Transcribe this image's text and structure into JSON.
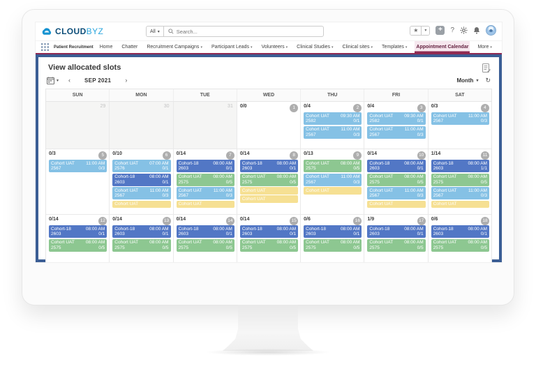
{
  "brand": {
    "cloud": "CLOUD",
    "byz": "BYZ"
  },
  "header": {
    "scope_label": "All",
    "search_placeholder": "Search...",
    "plus_label": "+",
    "help_label": "?"
  },
  "glyphs": {
    "caret_down": "▾",
    "chevron_left": "‹",
    "chevron_right": "›",
    "star": "★",
    "refresh": "↻"
  },
  "nav": {
    "app_label": "Patient Recruitment",
    "tabs": [
      {
        "label": "Home",
        "caret": false,
        "active": false
      },
      {
        "label": "Chatter",
        "caret": false,
        "active": false
      },
      {
        "label": "Recruitment Campaigns",
        "caret": true,
        "active": false
      },
      {
        "label": "Participant Leads",
        "caret": true,
        "active": false
      },
      {
        "label": "Volunteers",
        "caret": true,
        "active": false
      },
      {
        "label": "Clinical Studies",
        "caret": true,
        "active": false
      },
      {
        "label": "Clinical sites",
        "caret": true,
        "active": false
      },
      {
        "label": "Templates",
        "caret": true,
        "active": false
      },
      {
        "label": "Appointment Calendar",
        "caret": false,
        "active": true
      },
      {
        "label": "More",
        "caret": true,
        "active": false
      }
    ]
  },
  "page": {
    "title": "View allocated slots"
  },
  "toolbar": {
    "month_label": "SEP 2021",
    "view_label": "Month"
  },
  "colors": {
    "event_blue": "#85c1e5",
    "event_dark_blue": "#5277c5",
    "event_green": "#8dc791",
    "event_yellow": "#f6e093",
    "accent_maroon": "#8e2a52",
    "frame_blue": "#3b5e95",
    "brand_blue": "#1793d1"
  },
  "calendar": {
    "day_headers": [
      "SUN",
      "MON",
      "TUE",
      "WED",
      "THU",
      "FRI",
      "SAT"
    ],
    "weeks": [
      [
        {
          "day": "29",
          "muted": true,
          "count": "",
          "events": []
        },
        {
          "day": "30",
          "muted": true,
          "count": "",
          "events": []
        },
        {
          "day": "31",
          "muted": true,
          "count": "",
          "events": []
        },
        {
          "day": "1",
          "muted": false,
          "count": "0/0",
          "events": []
        },
        {
          "day": "2",
          "muted": false,
          "count": "0/4",
          "events": [
            {
              "name": "Cohort UAT",
              "id": "2582",
              "time": "09:30 AM",
              "slots": "0/1",
              "color": "blue"
            },
            {
              "name": "Cohort UAT",
              "id": "2567",
              "time": "11:00 AM",
              "slots": "0/3",
              "color": "blue"
            }
          ]
        },
        {
          "day": "3",
          "muted": false,
          "count": "0/4",
          "events": [
            {
              "name": "Cohort UAT",
              "id": "2582",
              "time": "09:30 AM",
              "slots": "0/1",
              "color": "blue"
            },
            {
              "name": "Cohort UAT",
              "id": "2567",
              "time": "11:00 AM",
              "slots": "0/3",
              "color": "blue"
            }
          ]
        },
        {
          "day": "4",
          "muted": false,
          "count": "0/3",
          "events": [
            {
              "name": "Cohort UAT",
              "id": "2567",
              "time": "11:00 AM",
              "slots": "0/3",
              "color": "blue"
            }
          ]
        }
      ],
      [
        {
          "day": "5",
          "muted": false,
          "count": "0/3",
          "events": [
            {
              "name": "Cohort UAT",
              "id": "2567",
              "time": "11:00 AM",
              "slots": "0/3",
              "color": "blue"
            }
          ]
        },
        {
          "day": "6",
          "muted": false,
          "count": "0/10",
          "events": [
            {
              "name": "Cohort UAT",
              "id": "2576",
              "time": "07:00 AM",
              "slots": "0/1",
              "color": "blue"
            },
            {
              "name": "Cohort-18",
              "id": "2603",
              "time": "08:00 AM",
              "slots": "0/1",
              "color": "darkblue"
            },
            {
              "name": "Cohort UAT",
              "id": "2567",
              "time": "11:00 AM",
              "slots": "0/3",
              "color": "blue"
            },
            {
              "name": "Cohort UAT",
              "id": "",
              "time": "",
              "slots": "",
              "color": "yellow"
            }
          ]
        },
        {
          "day": "7",
          "muted": false,
          "count": "0/14",
          "events": [
            {
              "name": "Cohort-18",
              "id": "2603",
              "time": "08:00 AM",
              "slots": "0/1",
              "color": "darkblue"
            },
            {
              "name": "Cohort UAT",
              "id": "2575",
              "time": "08:00 AM",
              "slots": "0/5",
              "color": "green"
            },
            {
              "name": "Cohort UAT",
              "id": "2567",
              "time": "11:00 AM",
              "slots": "0/3",
              "color": "blue"
            },
            {
              "name": "Cohort UAT",
              "id": "",
              "time": "",
              "slots": "",
              "color": "yellow"
            }
          ]
        },
        {
          "day": "8",
          "muted": false,
          "count": "0/14",
          "events": [
            {
              "name": "Cohort-18",
              "id": "2603",
              "time": "08:00 AM",
              "slots": "0/1",
              "color": "darkblue"
            },
            {
              "name": "Cohort UAT",
              "id": "2575",
              "time": "08:00 AM",
              "slots": "0/5",
              "color": "green"
            },
            {
              "name": "Cohort UAT",
              "id": "",
              "time": "",
              "slots": "",
              "color": "yellow"
            },
            {
              "name": "Cohort UAT",
              "id": "",
              "time": "",
              "slots": "",
              "color": "yellow"
            }
          ]
        },
        {
          "day": "9",
          "muted": false,
          "count": "0/13",
          "events": [
            {
              "name": "Cohort UAT",
              "id": "2575",
              "time": "08:00 AM",
              "slots": "0/5",
              "color": "green"
            },
            {
              "name": "Cohort UAT",
              "id": "2567",
              "time": "11:00 AM",
              "slots": "0/3",
              "color": "blue"
            },
            {
              "name": "Cohort UAT",
              "id": "",
              "time": "",
              "slots": "",
              "color": "yellow"
            }
          ]
        },
        {
          "day": "10",
          "muted": false,
          "count": "0/14",
          "events": [
            {
              "name": "Cohort-18",
              "id": "2603",
              "time": "08:00 AM",
              "slots": "0/1",
              "color": "darkblue"
            },
            {
              "name": "Cohort UAT",
              "id": "2575",
              "time": "08:00 AM",
              "slots": "0/5",
              "color": "green"
            },
            {
              "name": "Cohort UAT",
              "id": "2567",
              "time": "11:00 AM",
              "slots": "0/3",
              "color": "blue"
            },
            {
              "name": "Cohort UAT",
              "id": "",
              "time": "",
              "slots": "",
              "color": "yellow"
            }
          ]
        },
        {
          "day": "11",
          "muted": false,
          "count": "1/14",
          "events": [
            {
              "name": "Cohort-18",
              "id": "2603",
              "time": "08:00 AM",
              "slots": "1/1",
              "color": "darkblue"
            },
            {
              "name": "Cohort UAT",
              "id": "2575",
              "time": "08:00 AM",
              "slots": "0/5",
              "color": "green"
            },
            {
              "name": "Cohort UAT",
              "id": "2567",
              "time": "11:00 AM",
              "slots": "0/3",
              "color": "blue"
            },
            {
              "name": "Cohort UAT",
              "id": "",
              "time": "",
              "slots": "",
              "color": "yellow"
            }
          ]
        }
      ],
      [
        {
          "day": "12",
          "muted": false,
          "count": "0/14",
          "events": [
            {
              "name": "Cohort-18",
              "id": "2603",
              "time": "08:00 AM",
              "slots": "0/1",
              "color": "darkblue"
            },
            {
              "name": "Cohort UAT",
              "id": "2575",
              "time": "08:00 AM",
              "slots": "0/5",
              "color": "green"
            }
          ]
        },
        {
          "day": "13",
          "muted": false,
          "count": "0/14",
          "events": [
            {
              "name": "Cohort-18",
              "id": "2603",
              "time": "08:00 AM",
              "slots": "0/1",
              "color": "darkblue"
            },
            {
              "name": "Cohort UAT",
              "id": "2575",
              "time": "08:00 AM",
              "slots": "0/5",
              "color": "green"
            }
          ]
        },
        {
          "day": "14",
          "muted": false,
          "count": "0/14",
          "events": [
            {
              "name": "Cohort-18",
              "id": "2603",
              "time": "08:00 AM",
              "slots": "0/1",
              "color": "darkblue"
            },
            {
              "name": "Cohort UAT",
              "id": "2575",
              "time": "08:00 AM",
              "slots": "0/5",
              "color": "green"
            }
          ]
        },
        {
          "day": "15",
          "muted": false,
          "count": "0/14",
          "events": [
            {
              "name": "Cohort-18",
              "id": "2603",
              "time": "08:00 AM",
              "slots": "0/1",
              "color": "darkblue"
            },
            {
              "name": "Cohort UAT",
              "id": "2575",
              "time": "08:00 AM",
              "slots": "0/5",
              "color": "green"
            }
          ]
        },
        {
          "day": "16",
          "muted": false,
          "count": "0/6",
          "events": [
            {
              "name": "Cohort-18",
              "id": "2603",
              "time": "08:00 AM",
              "slots": "0/1",
              "color": "darkblue"
            },
            {
              "name": "Cohort UAT",
              "id": "2575",
              "time": "08:00 AM",
              "slots": "0/5",
              "color": "green"
            }
          ]
        },
        {
          "day": "17",
          "muted": false,
          "count": "1/9",
          "events": [
            {
              "name": "Cohort-18",
              "id": "2603",
              "time": "08:00 AM",
              "slots": "0/1",
              "color": "darkblue"
            },
            {
              "name": "Cohort UAT",
              "id": "2575",
              "time": "08:00 AM",
              "slots": "0/5",
              "color": "green"
            }
          ]
        },
        {
          "day": "18",
          "muted": false,
          "count": "0/6",
          "events": [
            {
              "name": "Cohort-18",
              "id": "2603",
              "time": "08:00 AM",
              "slots": "0/1",
              "color": "darkblue"
            },
            {
              "name": "Cohort UAT",
              "id": "2575",
              "time": "08:00 AM",
              "slots": "0/5",
              "color": "green"
            }
          ]
        }
      ]
    ]
  }
}
